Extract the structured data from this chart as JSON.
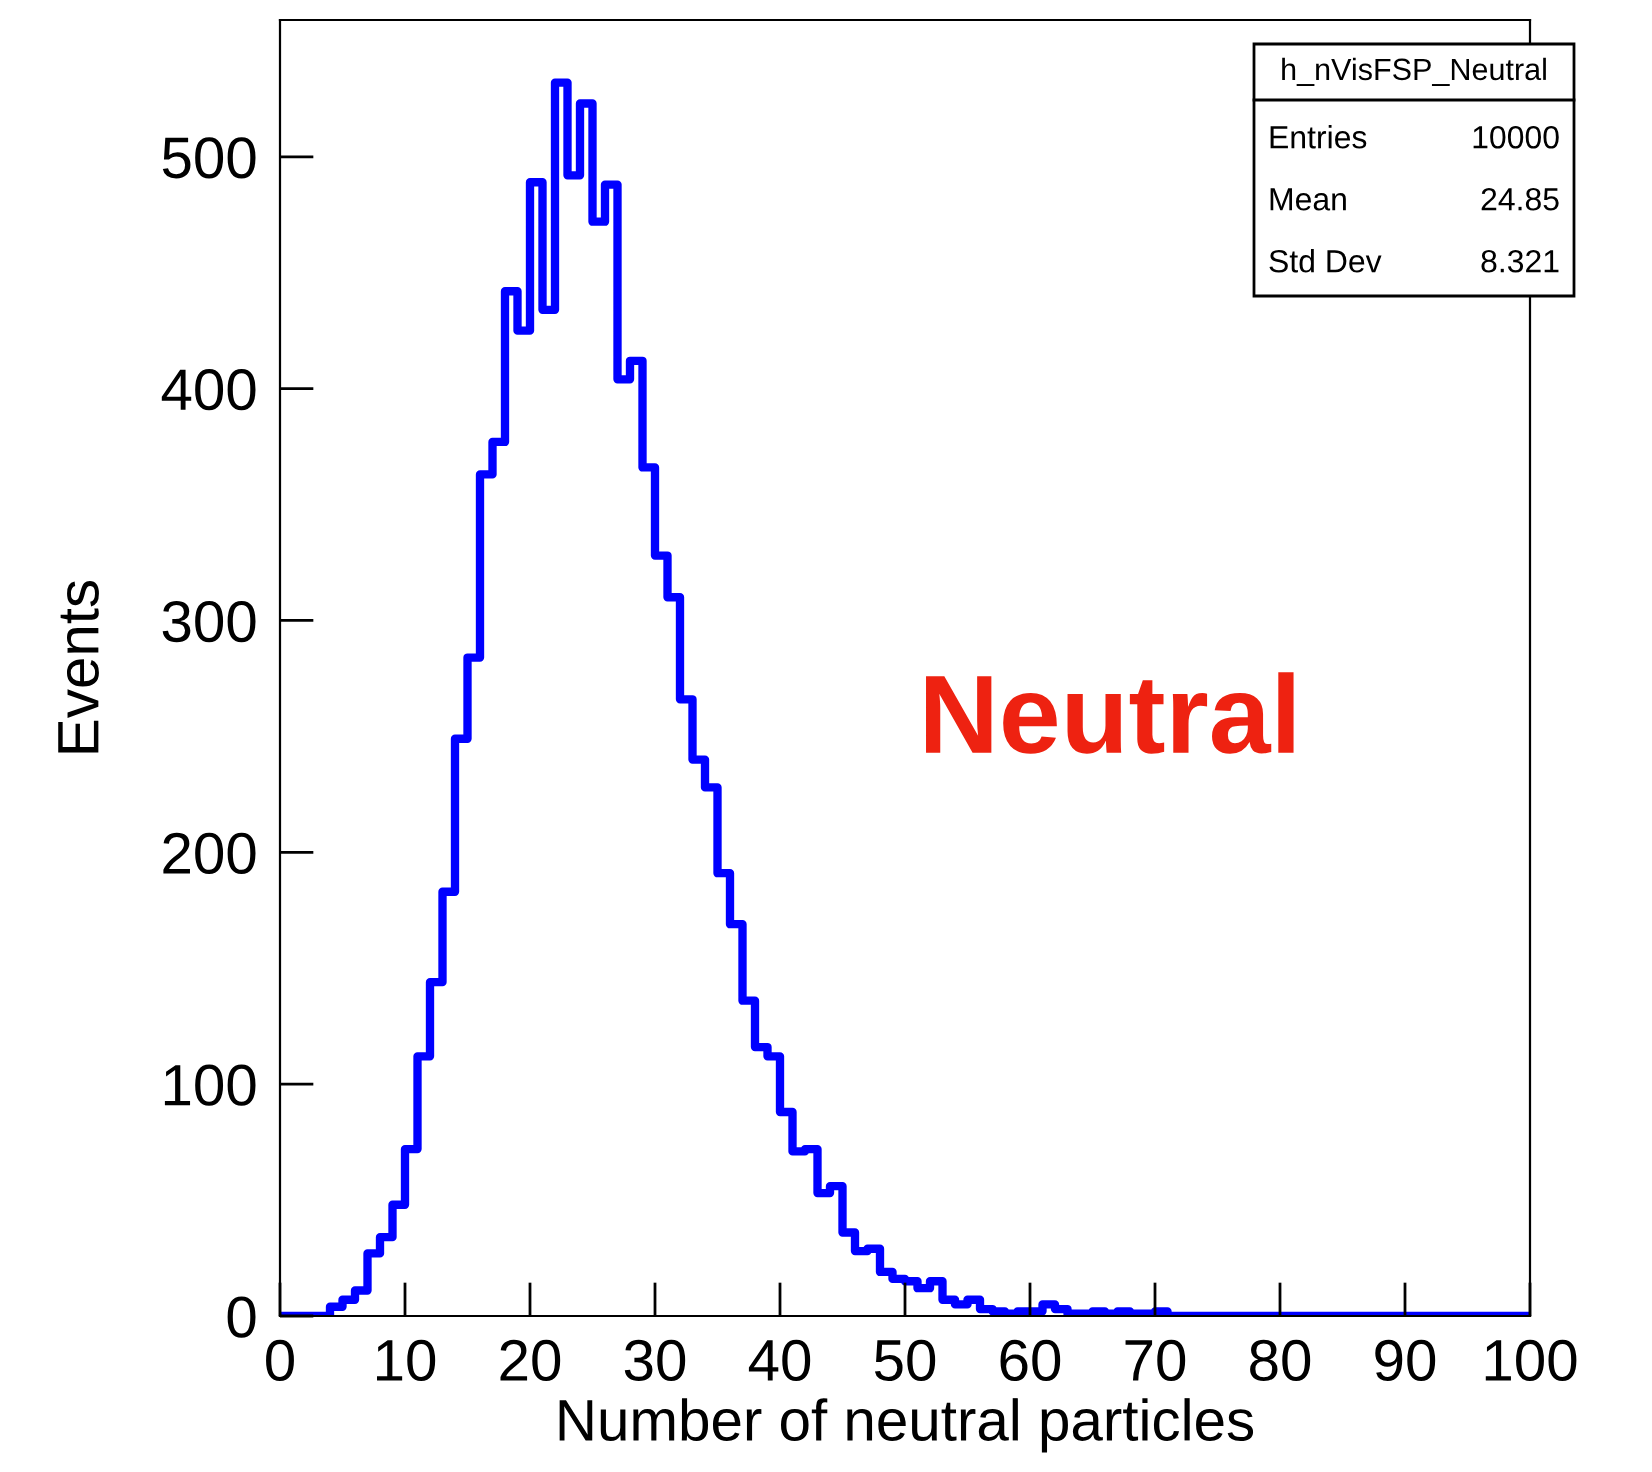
{
  "chart_data": {
    "type": "histogram",
    "xlabel": "Number of neutral particles",
    "ylabel": "Events",
    "bins": [
      0,
      1,
      2,
      3,
      4,
      5,
      6,
      7,
      8,
      9,
      10,
      11,
      12,
      13,
      14,
      15,
      16,
      17,
      18,
      19,
      20,
      21,
      22,
      23,
      24,
      25,
      26,
      27,
      28,
      29,
      30,
      31,
      32,
      33,
      34,
      35,
      36,
      37,
      38,
      39,
      40,
      41,
      42,
      43,
      44,
      45,
      46,
      47,
      48,
      49,
      50,
      51,
      52,
      53,
      54,
      55,
      56,
      57,
      58,
      59,
      60,
      61,
      62,
      63,
      64,
      65,
      66,
      67,
      68,
      69,
      70,
      71,
      72,
      73,
      74,
      75,
      76,
      77,
      78,
      79,
      80,
      81,
      82,
      83,
      84,
      85,
      86,
      87,
      88,
      89,
      90,
      91,
      92,
      93,
      94,
      95,
      96,
      97,
      98,
      99,
      100
    ],
    "values": [
      0,
      0,
      0,
      0,
      4,
      7,
      11,
      27,
      34,
      48,
      72,
      112,
      144,
      183,
      249,
      284,
      363,
      377,
      442,
      425,
      489,
      434,
      532,
      492,
      523,
      472,
      488,
      404,
      412,
      366,
      328,
      310,
      266,
      240,
      228,
      191,
      169,
      136,
      116,
      112,
      88,
      71,
      72,
      53,
      56,
      36,
      28,
      29,
      19,
      16,
      15,
      12,
      15,
      7,
      5,
      7,
      3,
      2,
      1,
      2,
      2,
      5,
      3,
      1,
      1,
      2,
      1,
      2,
      1,
      1,
      2,
      0,
      0,
      0,
      0,
      0,
      0,
      0,
      0,
      0,
      0,
      0,
      0,
      0,
      0,
      0,
      0,
      0,
      0,
      0,
      0,
      0,
      0,
      0,
      0,
      0,
      0,
      0,
      0,
      0
    ],
    "color": "#0000ff",
    "xlim": [
      0,
      100
    ],
    "xticks": [
      0,
      10,
      20,
      30,
      40,
      50,
      60,
      70,
      80,
      90,
      100
    ],
    "ylim": [
      0,
      559
    ],
    "yticks": [
      0,
      100,
      200,
      300,
      400,
      500
    ],
    "grid": false,
    "annotations": [
      "h_nVisFSP_Neutral",
      "Entries",
      "10000",
      "Mean",
      "24.85",
      "Std Dev",
      "8.321",
      "Neutral"
    ]
  }
}
